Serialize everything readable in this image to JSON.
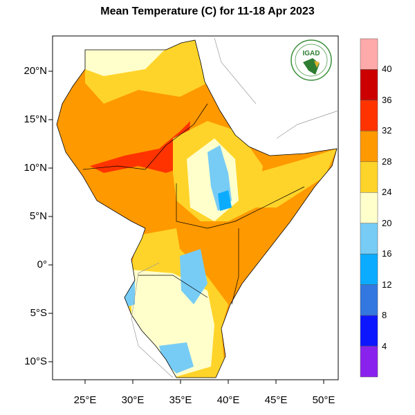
{
  "title": "Mean Temperature (C) for 11-18 Apr 2023",
  "logo": {
    "text": "IGAD"
  },
  "lat_ticks": [
    "20°N",
    "15°N",
    "10°N",
    "5°N",
    "0°",
    "5°S",
    "10°S"
  ],
  "lon_ticks": [
    "25°E",
    "30°E",
    "35°E",
    "40°E",
    "45°E",
    "50°E"
  ],
  "colorbar": {
    "labels": [
      "40",
      "36",
      "32",
      "28",
      "24",
      "20",
      "16",
      "12",
      "8",
      "4"
    ],
    "colors": [
      "#ffaaaa",
      "#cc0000",
      "#ff3300",
      "#ff9900",
      "#ffd42a",
      "#ffffcc",
      "#77ccf5",
      "#0bacff",
      "#3377e0",
      "#0d17ff",
      "#8a22ee"
    ]
  }
}
